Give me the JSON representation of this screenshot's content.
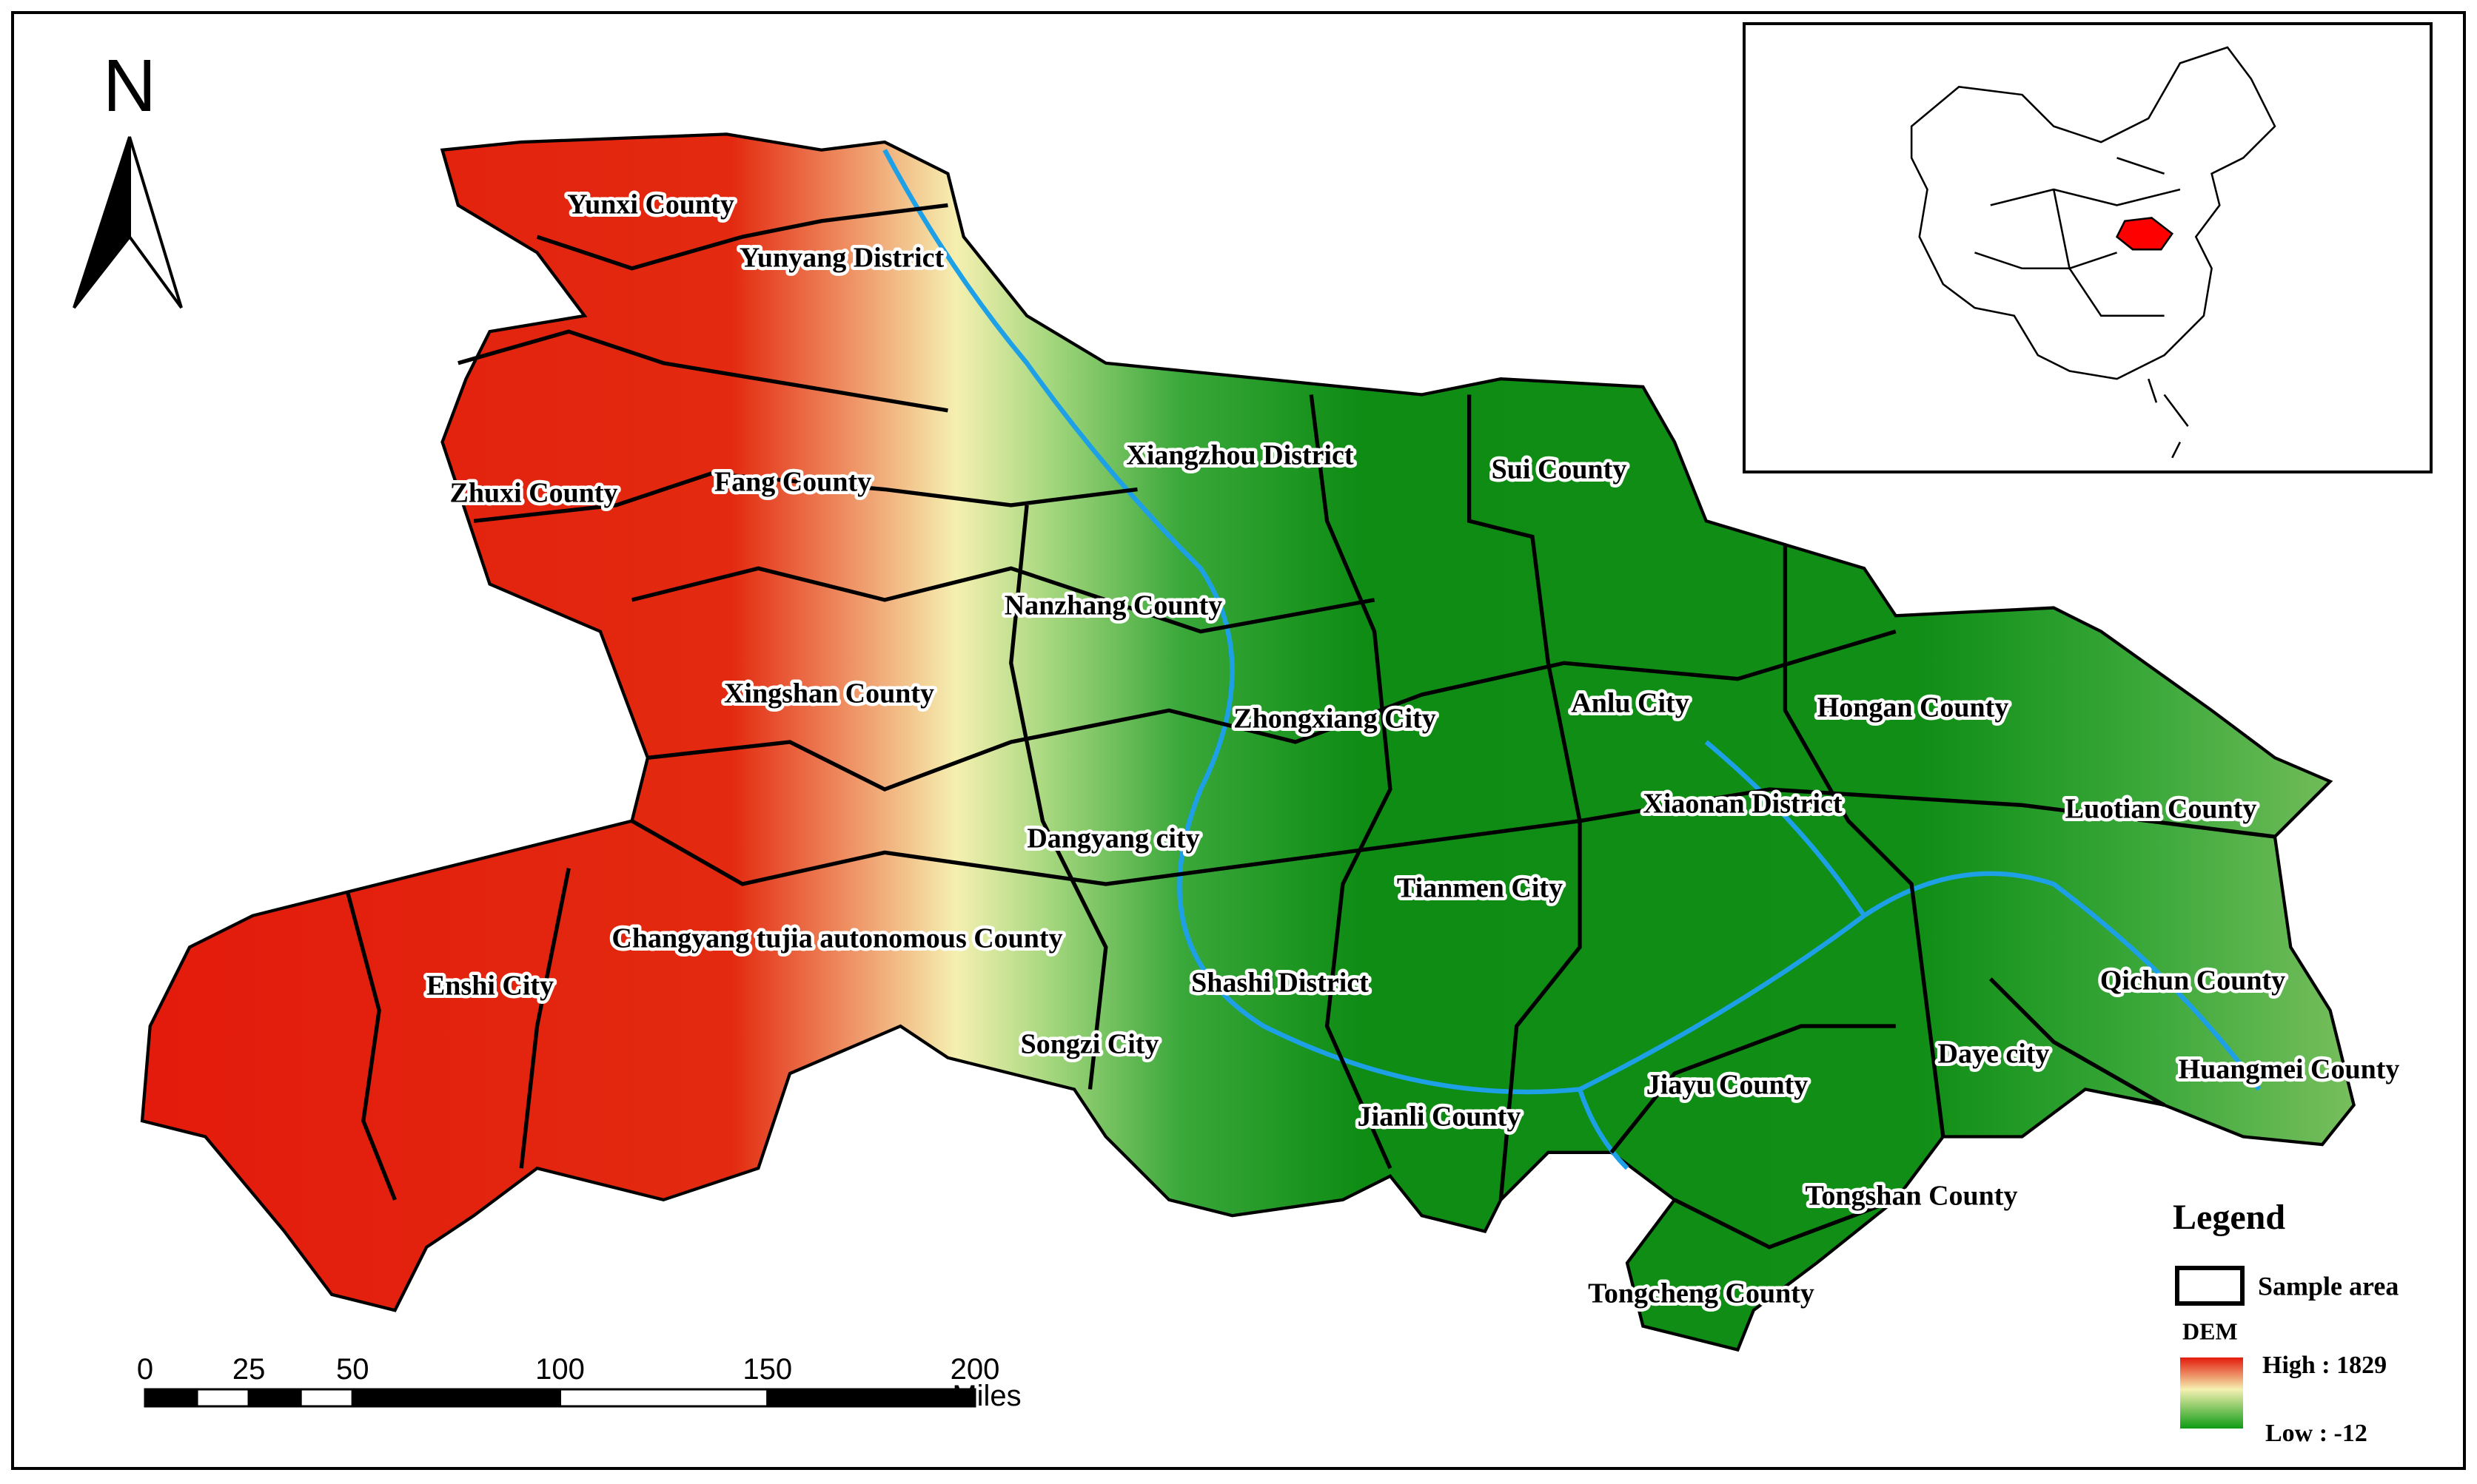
{
  "north_arrow": {
    "label": "N"
  },
  "places": [
    "Yunxi County",
    "Yunyang District",
    "Zhuxi County",
    "Fang County",
    "Xiangzhou District",
    "Sui County",
    "Nanzhang County",
    "Xingshan County",
    "Zhongxiang City",
    "Anlu City",
    "Hongan County",
    "Xiaonan District",
    "Luotian County",
    "Dangyang city",
    "Tianmen City",
    "Changyang tujia autonomous County",
    "Enshi City",
    "Shashi District",
    "Qichun County",
    "Songzi City",
    "Daye city",
    "Jiayu County",
    "Huangmei County",
    "Jianli County",
    "Tongshan County",
    "Tongcheng County"
  ],
  "scale_bar": {
    "ticks": [
      0,
      25,
      50,
      100,
      150,
      200
    ],
    "unit": "Miles"
  },
  "legend": {
    "title": "Legend",
    "sample_area": "Sample area",
    "dem_title": "DEM",
    "high": "High : 1829",
    "low": "Low : -12"
  }
}
